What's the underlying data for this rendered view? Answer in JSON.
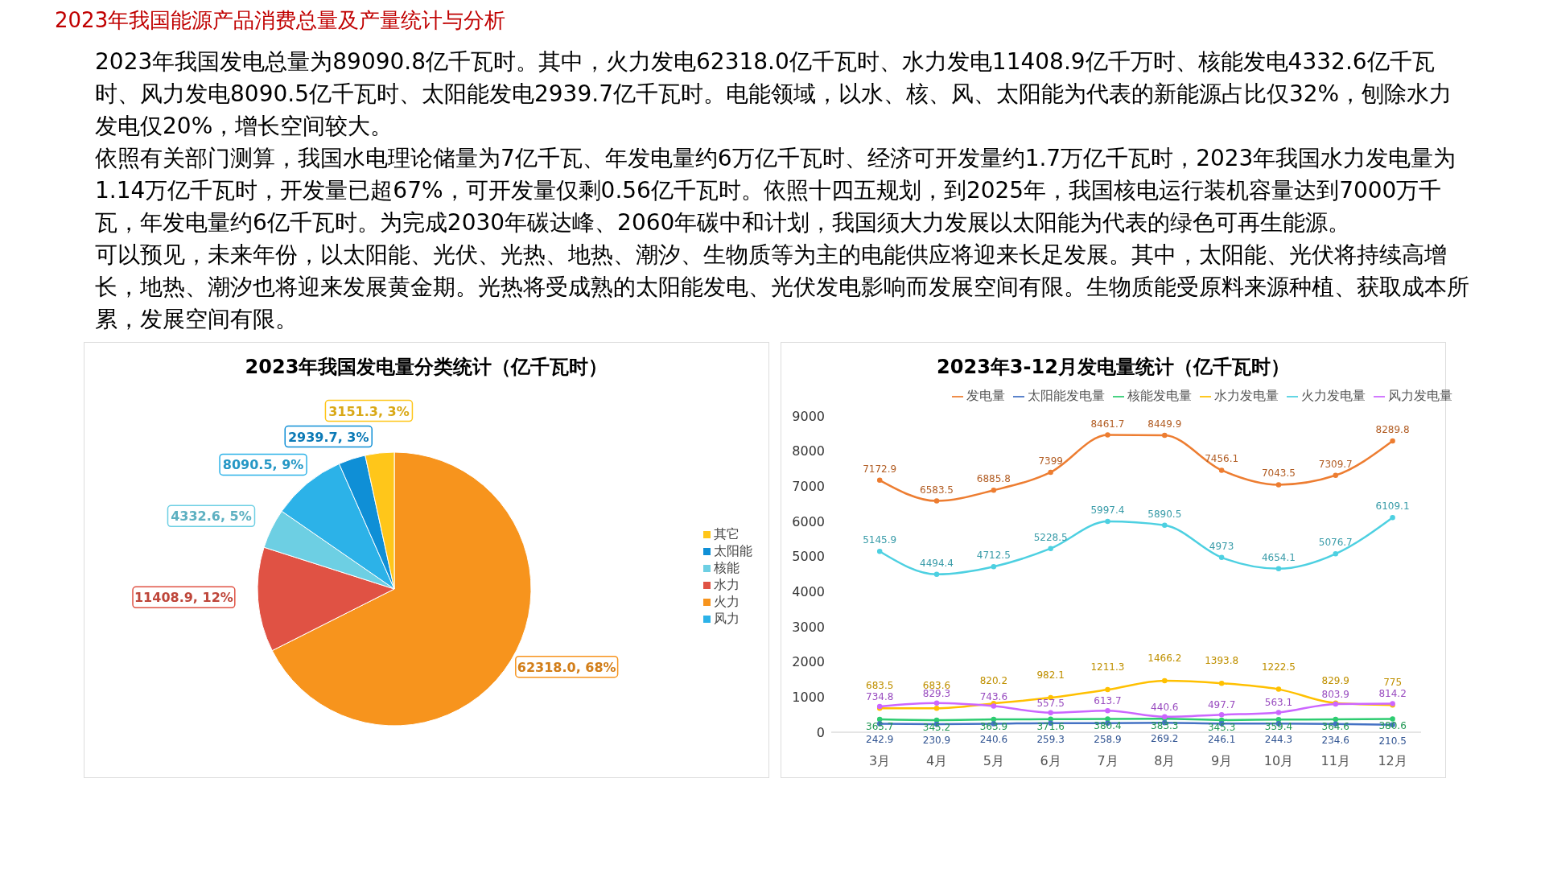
{
  "chart_data": [
    {
      "type": "other",
      "title": "2023年我国能源产品消费总量及产量统计与分析",
      "annotations": [
        "2023年我国发电总量为89090.8亿千瓦时。其中，火力发电62318.0亿千瓦时、水力发电11408.9亿千万时、核能发电4332.6亿千瓦时、风力发电8090.5亿千瓦时、太阳能发电2939.7亿千瓦时。电能领域，以水、核、风、太阳能为代表的新能源占比仅32%，刨除水力发电仅20%，增长空间较大。",
        "依照有关部门测算，我国水电理论储量为7亿千瓦、年发电量约6万亿千瓦时、经济可开发量约1.7万亿千瓦时，2023年我国水力发电量为1.14万亿千瓦时，开发量已超67%，可开发量仅剩0.56亿千瓦时。依照十四五规划，到2025年，我国核电运行装机容量达到7000万千瓦，年发电量约6亿千瓦时。为完成2030年碳达峰、2060年碳中和计划，我国须大力发展以太阳能为代表的绿色可再生能源。",
        "可以预见，未来年份，以太阳能、光伏、光热、地热、潮汐、生物质等为主的电能供应将迎来长足发展。其中，太阳能、光伏将持续高增长，地热、潮汐也将迎来发展黄金期。光热将受成熟的太阳能发电、光伏发电影响而发展空间有限。生物质能受原料来源种植、获取成本所累，发展空间有限。"
      ]
    },
    {
      "type": "pie",
      "title": "2023年我国发电量分类统计（亿千瓦时）",
      "categories": [
        "火力",
        "水力",
        "核能",
        "风力",
        "太阳能",
        "其它"
      ],
      "values": [
        62318.0,
        11408.9,
        4332.6,
        8090.5,
        2939.7,
        3151.3
      ],
      "colors": [
        "#f7941d",
        "#e05244",
        "#6dcfe3",
        "#2cb2e8",
        "#0f8fd6",
        "#ffc61a"
      ],
      "value_labels": [
        "62318.0, 68%",
        "11408.9, 12%",
        "4332.6, 5%",
        "8090.5, 9%",
        "2939.7, 3%",
        "3151.3, 3%"
      ],
      "legend": "right"
    },
    {
      "type": "line",
      "title": "2023年3-12月发电量统计（亿千瓦时）",
      "categories": [
        "3月",
        "4月",
        "5月",
        "6月",
        "7月",
        "8月",
        "9月",
        "10月",
        "11月",
        "12月"
      ],
      "series": [
        {
          "name": "发电量",
          "color": "#ed7d31",
          "values": [
            7172.9,
            6583.5,
            6885.8,
            7399,
            8461.7,
            8449.9,
            7456.1,
            7043.5,
            7309.7,
            8289.8
          ]
        },
        {
          "name": "火力发电量",
          "color": "#4dd0e1",
          "values": [
            5145.9,
            4494.4,
            4712.5,
            5228.5,
            5997.4,
            5890.5,
            4973,
            4654.1,
            5076.7,
            6109.1
          ]
        },
        {
          "name": "水力发电量",
          "color": "#ffc000",
          "values": [
            683.5,
            683.6,
            820.2,
            982.1,
            1211.3,
            1466.2,
            1393.8,
            1222.5,
            829.9,
            775
          ]
        },
        {
          "name": "核能发电量",
          "color": "#2ecc71",
          "values": [
            365.7,
            345.2,
            363.9,
            371.6,
            380.4,
            383.3,
            345.3,
            359.4,
            364.6,
            380.6
          ]
        },
        {
          "name": "风力发电量",
          "color": "#cc66ff",
          "values": [
            734.8,
            829.3,
            743.6,
            557.5,
            613.7,
            440.6,
            497.7,
            563.1,
            803.9,
            814.2
          ]
        },
        {
          "name": "太阳能发电量",
          "color": "#4472c4",
          "values": [
            242.9,
            230.9,
            240.6,
            259.3,
            258.9,
            269.2,
            246.1,
            244.3,
            234.6,
            210.5
          ]
        }
      ],
      "ylim": [
        0,
        9000
      ],
      "yticks": [
        0,
        1000,
        2000,
        3000,
        4000,
        5000,
        6000,
        7000,
        8000,
        9000
      ],
      "grid": false,
      "legend": "top",
      "data_labels": true,
      "marker": "circle",
      "line_style": "solid"
    }
  ]
}
